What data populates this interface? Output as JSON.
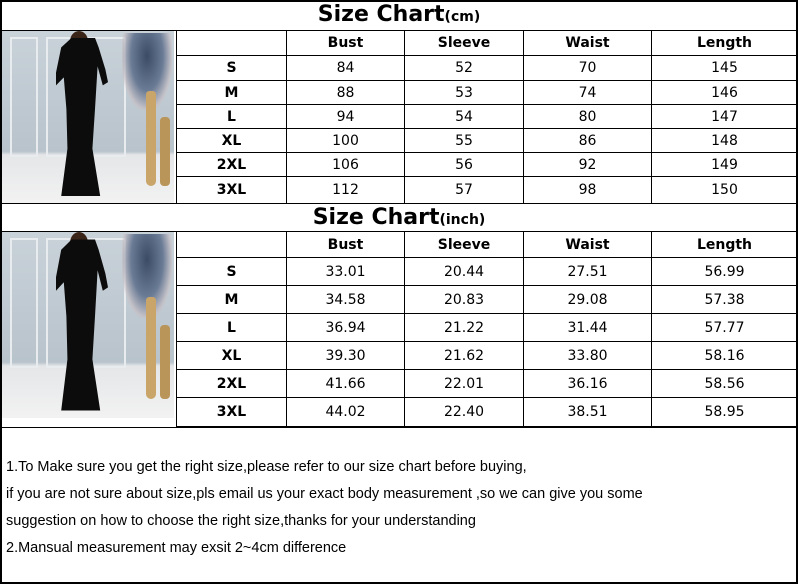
{
  "cm_chart": {
    "title": "Size Chart",
    "unit": "(cm)",
    "headers": [
      "",
      "Bust",
      "Sleeve",
      "Waist",
      "Length"
    ],
    "rows": [
      [
        "S",
        "84",
        "52",
        "70",
        "145"
      ],
      [
        "M",
        "88",
        "53",
        "74",
        "146"
      ],
      [
        "L",
        "94",
        "54",
        "80",
        "147"
      ],
      [
        "XL",
        "100",
        "55",
        "86",
        "148"
      ],
      [
        "2XL",
        "106",
        "56",
        "92",
        "149"
      ],
      [
        "3XL",
        "112",
        "57",
        "98",
        "150"
      ]
    ]
  },
  "inch_chart": {
    "title": "Size Chart",
    "unit": "(inch)",
    "headers": [
      "",
      "Bust",
      "Sleeve",
      "Waist",
      "Length"
    ],
    "rows": [
      [
        "S",
        "33.01",
        "20.44",
        "27.51",
        "56.99"
      ],
      [
        "M",
        "34.58",
        "20.83",
        "29.08",
        "57.38"
      ],
      [
        "L",
        "36.94",
        "21.22",
        "31.44",
        "57.77"
      ],
      [
        "XL",
        "39.30",
        "21.62",
        "33.80",
        "58.16"
      ],
      [
        "2XL",
        "41.66",
        "22.01",
        "36.16",
        "58.56"
      ],
      [
        "3XL",
        "44.02",
        "22.40",
        "38.51",
        "58.95"
      ]
    ]
  },
  "notes": [
    "1.To Make sure you get the right size,please refer to our size chart before buying,",
    "if you are not sure about size,pls email us your exact body measurement ,so we can give you some",
    "suggestion on how to choose the right size,thanks for your understanding",
    "2.Mansual measurement may exsit 2~4cm difference"
  ]
}
